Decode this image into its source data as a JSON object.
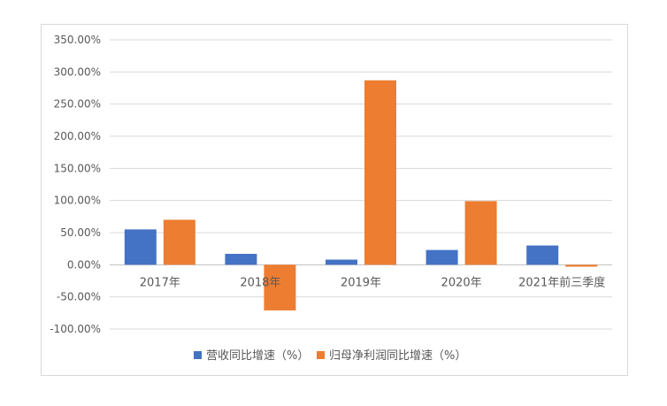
{
  "chart_data": {
    "type": "bar",
    "categories": [
      "2017年",
      "2018年",
      "2019年",
      "2020年",
      "2021年前三季度"
    ],
    "series": [
      {
        "name": "营收同比增速（%）",
        "color": "#4472C4",
        "values": [
          55,
          17,
          8,
          23,
          30
        ]
      },
      {
        "name": "归母净利润同比增速（%）",
        "color": "#ED7D31",
        "values": [
          70,
          -71,
          287,
          99,
          -3
        ]
      }
    ],
    "ylim": [
      -100,
      350
    ],
    "yticks": [
      {
        "value": 350,
        "label": "350.00%"
      },
      {
        "value": 300,
        "label": "300.00%"
      },
      {
        "value": 250,
        "label": "250.00%"
      },
      {
        "value": 200,
        "label": "200.00%"
      },
      {
        "value": 150,
        "label": "150.00%"
      },
      {
        "value": 100,
        "label": "100.00%"
      },
      {
        "value": 50,
        "label": "50.00%"
      },
      {
        "value": 0,
        "label": "0.00%"
      },
      {
        "value": -50,
        "label": "-50.00%"
      },
      {
        "value": -100,
        "label": "-100.00%"
      }
    ],
    "grid": true,
    "legend_position": "bottom",
    "title": "",
    "xlabel": "",
    "ylabel": ""
  }
}
